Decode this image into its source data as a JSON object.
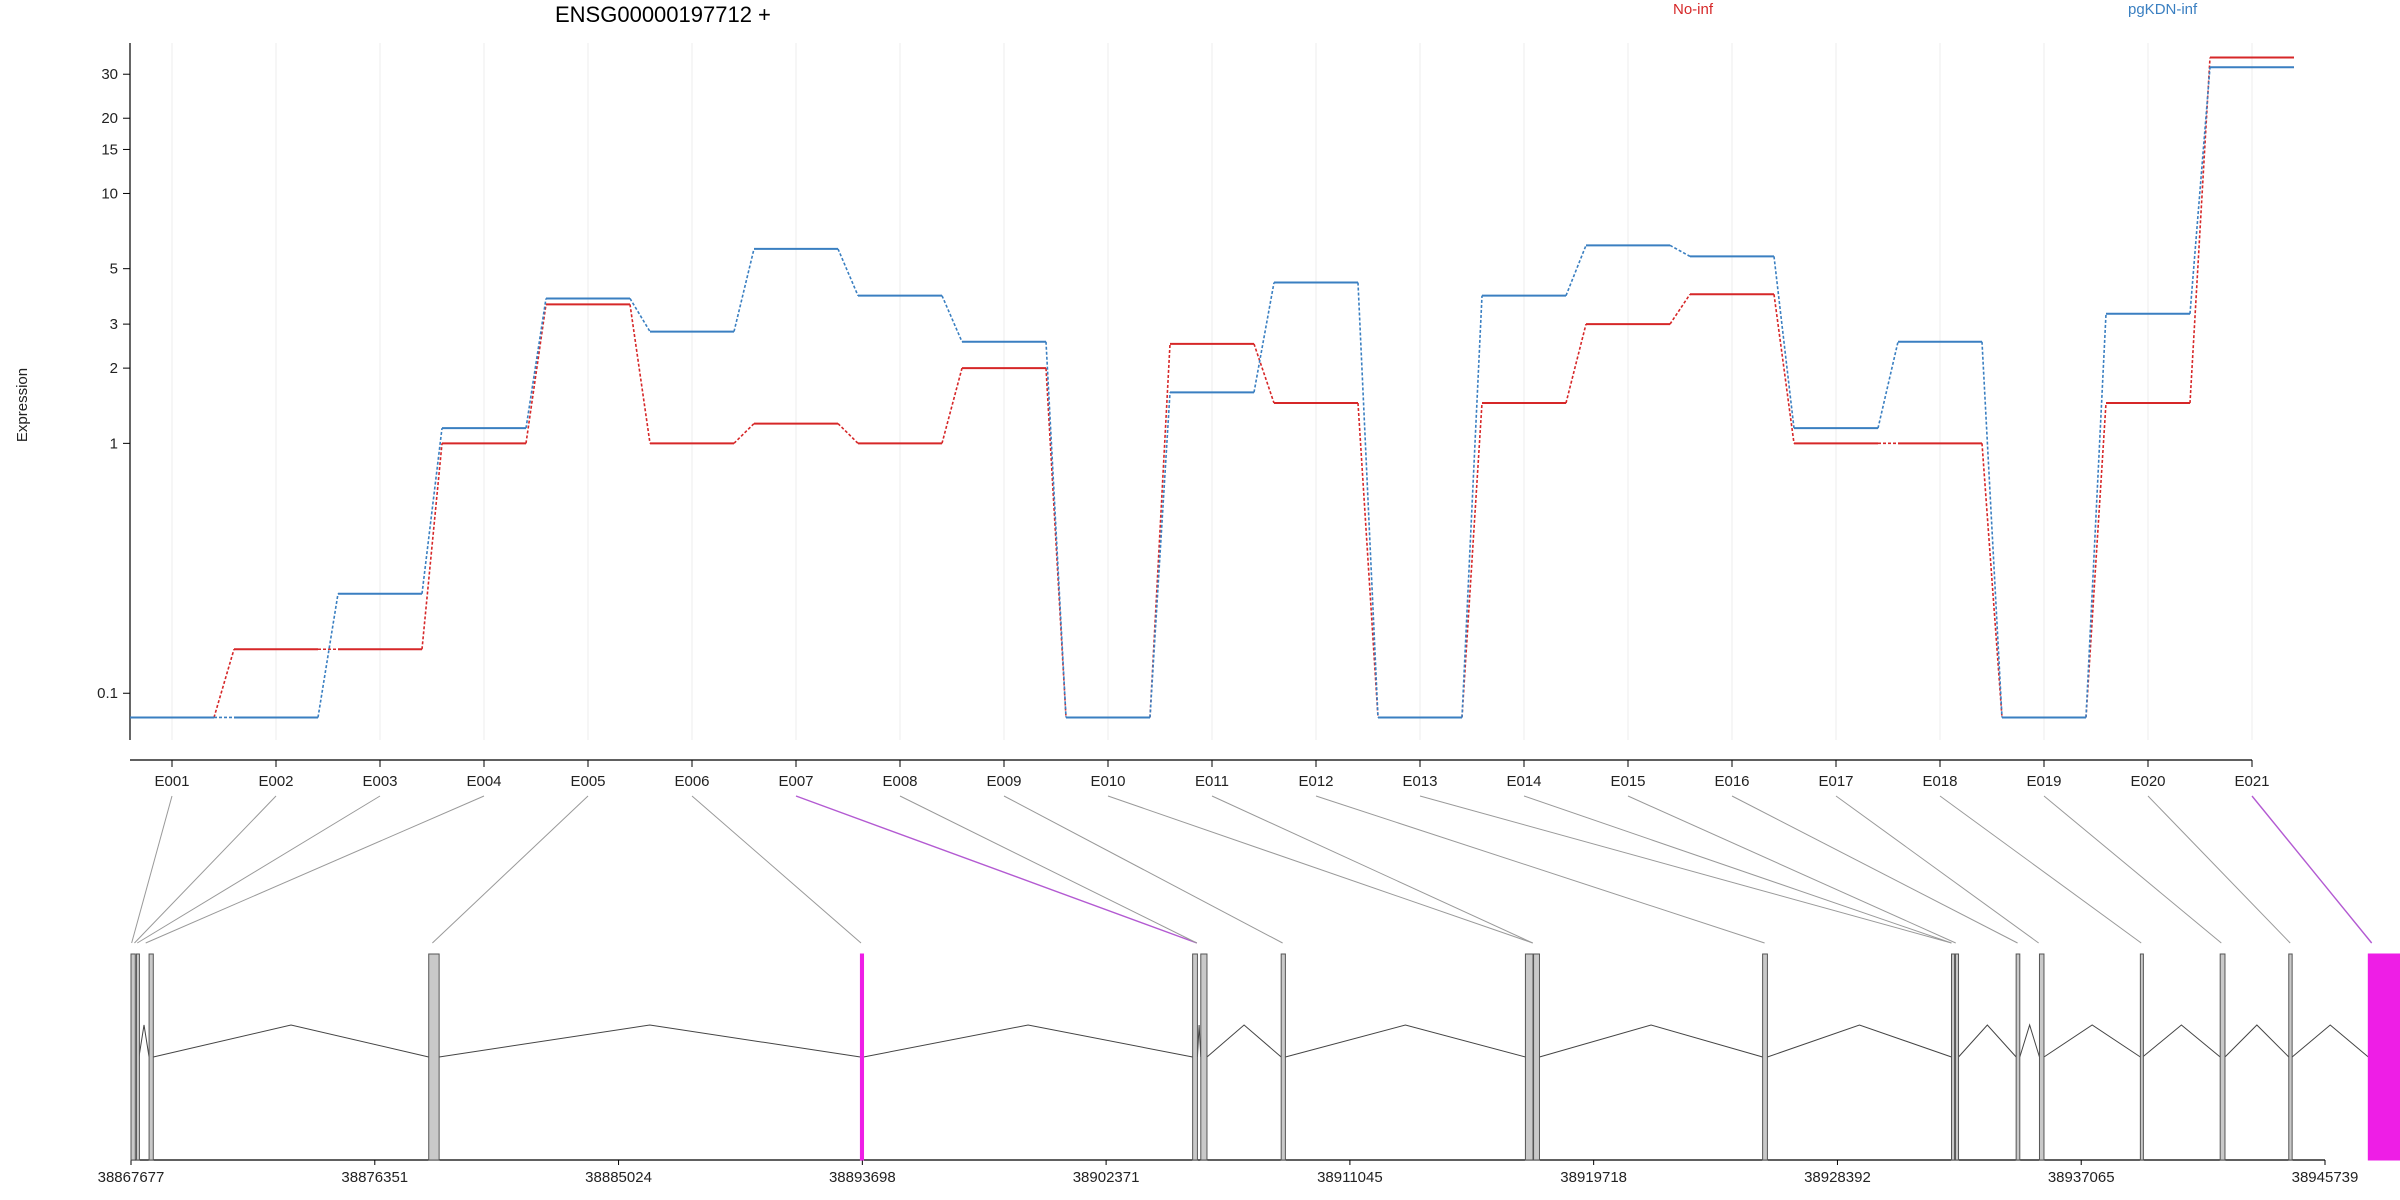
{
  "chart_data": {
    "type": "line",
    "title": "ENSG00000197712 +",
    "ylabel": "Expression",
    "xlabel": "",
    "y_scale": "log",
    "ylim": [
      0.065,
      40
    ],
    "y_ticks": [
      0.1,
      1,
      2,
      3,
      5,
      10,
      15,
      20,
      30
    ],
    "y_tick_labels": [
      "0.1",
      "1",
      "2",
      "3",
      "5",
      "10",
      "15",
      "20",
      "30"
    ],
    "categories": [
      "E001",
      "E002",
      "E003",
      "E004",
      "E005",
      "E006",
      "E007",
      "E008",
      "E009",
      "E010",
      "E011",
      "E012",
      "E013",
      "E014",
      "E015",
      "E016",
      "E017",
      "E018",
      "E019",
      "E020",
      "E021"
    ],
    "series": [
      {
        "name": "No-inf",
        "color": "#d62728",
        "values": [
          0.08,
          0.15,
          0.15,
          1.0,
          3.6,
          1.0,
          1.2,
          1.0,
          2.0,
          0.08,
          2.5,
          1.45,
          0.08,
          1.45,
          3.0,
          3.95,
          1.0,
          1.0,
          0.08,
          1.45,
          35
        ]
      },
      {
        "name": "pgKDN-inf",
        "color": "#3a7fc1",
        "values": [
          0.08,
          0.08,
          0.25,
          1.15,
          3.8,
          2.8,
          6.0,
          3.9,
          2.55,
          0.08,
          1.6,
          4.4,
          0.08,
          3.9,
          6.2,
          5.6,
          1.15,
          2.55,
          0.08,
          3.3,
          32
        ]
      }
    ],
    "legend_placement": "top",
    "grid": "vertical-faint",
    "gene_model": {
      "x_ticks": [
        38867677,
        38876351,
        38885024,
        38893698,
        38902371,
        38911045,
        38919718,
        38928392,
        38937065,
        38945739
      ],
      "x_tick_labels": [
        "38867677",
        "38876351",
        "38885024",
        "38893698",
        "38902371",
        "38911045",
        "38919718",
        "38928392",
        "38937065",
        "38945739"
      ],
      "highlighted_exons": [
        "E007",
        "E021"
      ],
      "highlight_color": "#ee1ee6",
      "exon_color": "#c9c9c9",
      "connector_color": "#999999"
    }
  }
}
